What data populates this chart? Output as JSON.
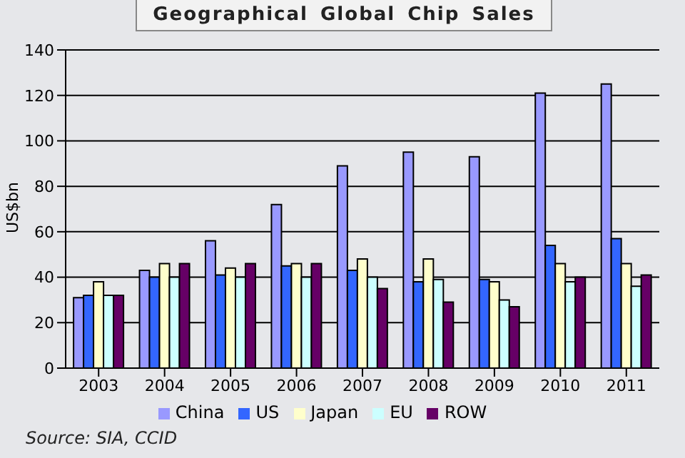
{
  "chart_data": {
    "type": "bar",
    "title": "Geographical Global Chip Sales",
    "ylabel": "US$bn",
    "categories": [
      "2003",
      "2004",
      "2005",
      "2006",
      "2007",
      "2008",
      "2009",
      "2010",
      "2011"
    ],
    "series": [
      {
        "name": "China",
        "color": "#9999ff",
        "values": [
          31,
          43,
          56,
          72,
          89,
          95,
          93,
          121,
          125
        ]
      },
      {
        "name": "US",
        "color": "#3366ff",
        "values": [
          32,
          40,
          41,
          45,
          43,
          38,
          39,
          54,
          57
        ]
      },
      {
        "name": "Japan",
        "color": "#ffffcc",
        "values": [
          38,
          46,
          44,
          46,
          48,
          48,
          38,
          46,
          46
        ]
      },
      {
        "name": "EU",
        "color": "#ccffff",
        "values": [
          32,
          40,
          40,
          40,
          40,
          39,
          30,
          38,
          36
        ]
      },
      {
        "name": "ROW",
        "color": "#660066",
        "values": [
          32,
          46,
          46,
          46,
          35,
          29,
          27,
          40,
          41
        ]
      }
    ],
    "ylim": [
      0,
      140
    ],
    "yticks": [
      0,
      20,
      40,
      60,
      80,
      100,
      120,
      140
    ],
    "grid": "y",
    "legend": "bottom",
    "annotations": [
      "Source: SIA, CCID"
    ]
  }
}
